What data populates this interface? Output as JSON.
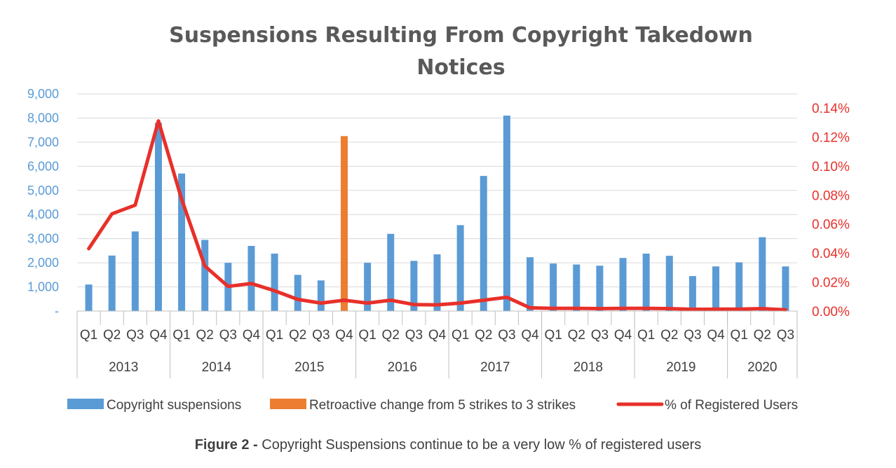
{
  "chart_data": {
    "type": "bar",
    "title": "Suspensions Resulting From Copyright Takedown Notices",
    "title_lines": [
      "Suspensions Resulting From Copyright Takedown",
      "Notices"
    ],
    "categories": [
      "Q1",
      "Q2",
      "Q3",
      "Q4",
      "Q1",
      "Q2",
      "Q3",
      "Q4",
      "Q1",
      "Q2",
      "Q3",
      "Q4",
      "Q1",
      "Q2",
      "Q3",
      "Q4",
      "Q1",
      "Q2",
      "Q3",
      "Q4",
      "Q1",
      "Q2",
      "Q3",
      "Q4",
      "Q1",
      "Q2",
      "Q3",
      "Q4",
      "Q1",
      "Q2",
      "Q3"
    ],
    "groups": [
      {
        "label": "2013",
        "count": 4
      },
      {
        "label": "2014",
        "count": 4
      },
      {
        "label": "2015",
        "count": 4
      },
      {
        "label": "2016",
        "count": 4
      },
      {
        "label": "2017",
        "count": 4
      },
      {
        "label": "2018",
        "count": 4
      },
      {
        "label": "2019",
        "count": 4
      },
      {
        "label": "2020",
        "count": 3
      }
    ],
    "series": [
      {
        "name": "Copyright suspensions",
        "type": "bar",
        "axis": "left",
        "color": "#5b9bd5",
        "values": [
          1100,
          2300,
          3300,
          7800,
          5700,
          2950,
          2000,
          2700,
          2380,
          1500,
          1270,
          2230,
          2000,
          3200,
          2080,
          2350,
          3560,
          5600,
          8100,
          2230,
          1970,
          1930,
          1880,
          2200,
          2380,
          2290,
          1450,
          1850,
          2020,
          3060,
          1850
        ]
      },
      {
        "name": "Retroactive change from 5 strikes to 3 strikes",
        "type": "bar",
        "axis": "left",
        "color": "#ed7d31",
        "values": [
          null,
          null,
          null,
          null,
          null,
          null,
          null,
          null,
          null,
          null,
          null,
          7250,
          null,
          null,
          null,
          null,
          null,
          null,
          null,
          null,
          null,
          null,
          null,
          null,
          null,
          null,
          null,
          null,
          null,
          null,
          null
        ]
      },
      {
        "name": "% of Registered Users",
        "type": "line",
        "axis": "right",
        "color": "#e8302a",
        "values": [
          0.043,
          0.067,
          0.073,
          0.131,
          0.077,
          0.031,
          0.017,
          0.019,
          0.014,
          0.008,
          0.0055,
          0.0075,
          0.0055,
          0.0075,
          0.0045,
          0.0043,
          0.0055,
          0.0075,
          0.0095,
          0.0022,
          0.0019,
          0.0019,
          0.0017,
          0.0019,
          0.0019,
          0.0017,
          0.0012,
          0.0013,
          0.0013,
          0.0017,
          0.0008
        ]
      }
    ],
    "y_left": {
      "lim": [
        0,
        9000
      ],
      "ticks": [
        0,
        1000,
        2000,
        3000,
        4000,
        5000,
        6000,
        7000,
        8000,
        9000
      ],
      "tick_labels": [
        "-",
        "1,000",
        "2,000",
        "3,000",
        "4,000",
        "5,000",
        "6,000",
        "7,000",
        "8,000",
        "9,000"
      ]
    },
    "y_right": {
      "lim": [
        0,
        0.14
      ],
      "ticks": [
        0,
        0.02,
        0.04,
        0.06,
        0.08,
        0.1,
        0.12,
        0.14
      ],
      "tick_labels": [
        "0.00%",
        "0.02%",
        "0.04%",
        "0.06%",
        "0.08%",
        "0.10%",
        "0.12%",
        "0.14%"
      ]
    },
    "grid": true,
    "legend_position": "bottom"
  },
  "caption": {
    "bold": "Figure 2 -",
    "text": " Copyright Suspensions continue to be a very low % of registered users"
  }
}
